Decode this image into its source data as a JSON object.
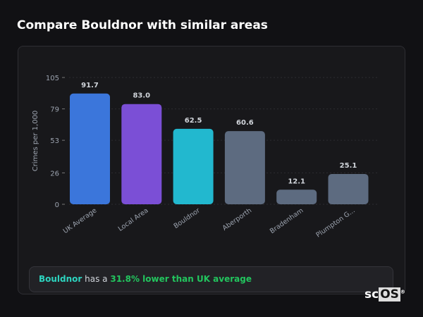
{
  "title": "Compare Bouldnor with similar areas",
  "chart_data": {
    "type": "bar",
    "ylabel": "Crimes per 1,000",
    "ylim": [
      0,
      105
    ],
    "yticks": [
      0,
      26,
      53,
      79,
      105
    ],
    "grid": true,
    "categories": [
      "UK Average",
      "Local Area",
      "Bouldnor",
      "Aberporth",
      "Bradenham",
      "Plumpton G..."
    ],
    "values": [
      91.7,
      83.0,
      62.5,
      60.6,
      12.1,
      25.1
    ],
    "labels": [
      "91.7",
      "83.0",
      "62.5",
      "60.6",
      "12.1",
      "25.1"
    ],
    "colors": [
      "#3b76db",
      "#7b4fd6",
      "#22b8cf",
      "#5d6b80",
      "#5d6b80",
      "#5d6b80"
    ]
  },
  "footer": {
    "area": "Bouldnor",
    "mid": " has a ",
    "highlight": "31.8% lower than UK average"
  },
  "logo": {
    "sc": "sc",
    "os": "OS",
    "mark": "®"
  }
}
